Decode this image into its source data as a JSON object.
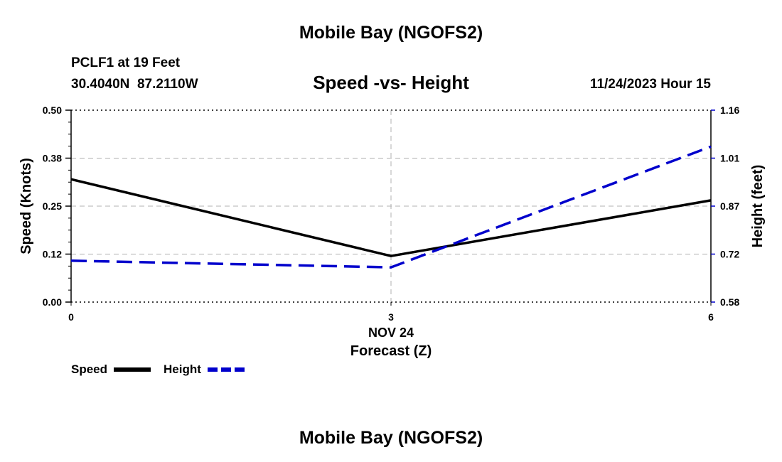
{
  "header": {
    "title": "Mobile Bay (NGOFS2)",
    "station": "PCLF1 at 19 Feet",
    "coords": "30.4040N  87.2110W",
    "date": "11/24/2023 Hour 15",
    "footer_title": "Mobile Bay (NGOFS2)"
  },
  "chart_data": {
    "type": "line",
    "title": "Speed -vs- Height",
    "xlabel": "Forecast (Z)",
    "xlabel_date": "NOV 24",
    "ylabel": "Speed (Knots)",
    "ylabel_right": "Height (feet)",
    "x": [
      0,
      3,
      6
    ],
    "x_ticks": [
      "0",
      "3",
      "6"
    ],
    "xlim": [
      0,
      6
    ],
    "ylim": [
      0,
      0.5
    ],
    "ylim_right": [
      0.58,
      1.16
    ],
    "y_ticks": [
      "0.00",
      "0.12",
      "0.25",
      "0.38",
      "0.50"
    ],
    "y_ticks_right": [
      "0.58",
      "0.72",
      "0.87",
      "1.01",
      "1.16"
    ],
    "grid": true,
    "legend": "bottom-left",
    "series": [
      {
        "name": "Speed",
        "axis": "left",
        "values": [
          0.32,
          0.12,
          0.265
        ],
        "color": "#000000",
        "style": "solid"
      },
      {
        "name": "Height",
        "axis": "right",
        "values": [
          0.705,
          0.685,
          1.05
        ],
        "color": "#0000cc",
        "style": "dashed"
      }
    ]
  }
}
